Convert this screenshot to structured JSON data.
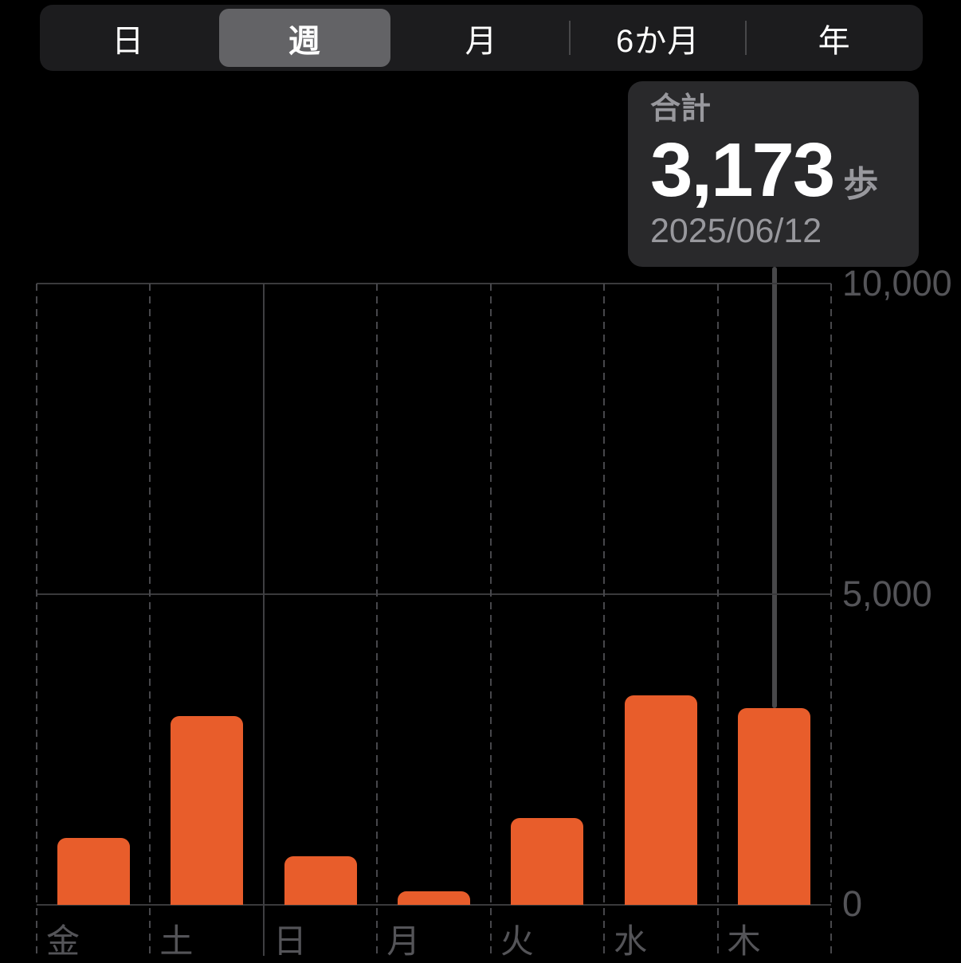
{
  "segmented_control": {
    "options": [
      {
        "label": "日",
        "selected": false
      },
      {
        "label": "週",
        "selected": true
      },
      {
        "label": "月",
        "selected": false
      },
      {
        "label": "6か月",
        "selected": false
      },
      {
        "label": "年",
        "selected": false
      }
    ]
  },
  "tooltip": {
    "title": "合計",
    "value": "3,173",
    "unit": "歩",
    "date": "2025/06/12"
  },
  "chart_data": {
    "type": "bar",
    "categories": [
      "金",
      "土",
      "日",
      "月",
      "火",
      "水",
      "木"
    ],
    "values": [
      1080,
      3040,
      780,
      220,
      1400,
      3370,
      3173
    ],
    "selected_index": 6,
    "selected_value": 3173,
    "ylabel": "",
    "xlabel": "",
    "ylim": [
      0,
      10000
    ],
    "yticks": [
      0,
      5000,
      10000
    ],
    "ytick_labels": [
      "0",
      "5,000",
      "10,000"
    ],
    "grid": true,
    "solid_vline_index": 2,
    "bar_color": "#e85d2b",
    "legend_position": "none"
  },
  "colors": {
    "background": "#000000",
    "bar": "#e85d2b",
    "grid_solid": "#3a3a3c",
    "grid_dashed": "#47474b",
    "axis_label": "#545458",
    "tooltip_bg": "#29292b",
    "tooltip_secondary": "#98989d",
    "segment_bg": "#1c1c1e",
    "segment_thumb": "#636366",
    "pointer_line": "#48484a"
  }
}
